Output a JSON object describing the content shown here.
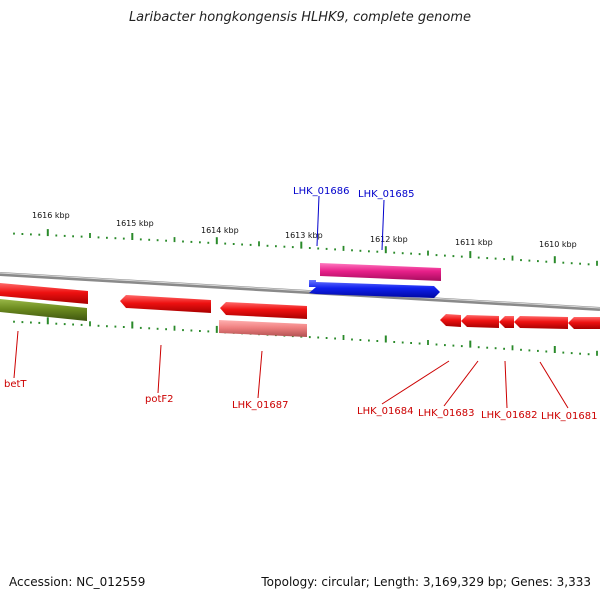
{
  "title": "Laribacter hongkongensis HLHK9, complete genome",
  "accession_text": "Accession: NC_012559",
  "summary_text": "Topology: circular; Length: 3,169,329 bp; Genes: 3,333",
  "colors": {
    "backbone": "#8a8a8a",
    "tick": "#2a8a2a",
    "label_forward": "#0000cc",
    "label_reverse": "#cc0000",
    "gene_red": "#ee1111",
    "gene_pink": "#e8208a",
    "gene_blue": "#1020ee",
    "gene_salmon": "#ef8080",
    "gene_olive": "#6b8a1e"
  },
  "scale": {
    "unit": "kbp",
    "tick_labels": [
      "1616 kbp",
      "1615 kbp",
      "1614 kbp",
      "1613 kbp",
      "1612 kbp",
      "1611 kbp",
      "1610 kbp"
    ]
  },
  "genes": [
    {
      "label": "LHK_01686",
      "strand": "forward",
      "color": "gene_blue"
    },
    {
      "label": "LHK_01685",
      "strand": "forward",
      "color": "gene_pink"
    },
    {
      "label": "betT",
      "strand": "reverse",
      "color": "gene_red"
    },
    {
      "label": "potF2",
      "strand": "reverse",
      "color": "gene_red"
    },
    {
      "label": "LHK_01687",
      "strand": "reverse",
      "color": "gene_red"
    },
    {
      "label": "LHK_01684",
      "strand": "reverse",
      "color": "gene_red"
    },
    {
      "label": "LHK_01683",
      "strand": "reverse",
      "color": "gene_red"
    },
    {
      "label": "LHK_01682",
      "strand": "reverse",
      "color": "gene_red"
    },
    {
      "label": "LHK_01681",
      "strand": "reverse",
      "color": "gene_red"
    }
  ],
  "unlabeled_features": [
    {
      "strand": "reverse",
      "color": "gene_olive"
    },
    {
      "strand": "reverse",
      "color": "gene_salmon"
    }
  ]
}
